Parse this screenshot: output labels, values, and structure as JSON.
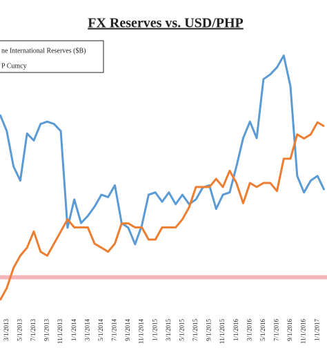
{
  "chart_data": {
    "type": "line",
    "title": "FX Reserves vs. USD/PHP",
    "categories": [
      null,
      "3/1/2013",
      null,
      "5/1/2013",
      null,
      "7/1/2013",
      null,
      "9/1/2013",
      null,
      "11/1/2013",
      null,
      "1/1/2014",
      null,
      "3/1/2014",
      null,
      "5/1/2014",
      null,
      "7/1/2014",
      null,
      "9/1/2014",
      null,
      "11/1/2014",
      null,
      "1/1/2015",
      null,
      "3/1/2015",
      null,
      "5/1/2015",
      null,
      "7/1/2015",
      null,
      "9/1/2015",
      null,
      "11/1/2015",
      null,
      "1/1/2016",
      null,
      "3/1/2016",
      null,
      "5/1/2016",
      null,
      "7/1/2016",
      null,
      "9/1/2016",
      null,
      "11/1/2016",
      null,
      "1/1/2017",
      null
    ],
    "series": [
      {
        "name": "ne International Reserves ($B)",
        "color": "#5b9bd5",
        "values": [
          83.9,
          83.2,
          81.7,
          81.1,
          83.1,
          82.8,
          83.5,
          83.6,
          83.5,
          83.2,
          79.1,
          80.3,
          79.3,
          79.6,
          80.0,
          80.5,
          80.4,
          80.9,
          79.3,
          79.1,
          78.4,
          79.2,
          80.5,
          80.6,
          80.2,
          80.6,
          80.1,
          80.5,
          80.1,
          80.3,
          80.8,
          80.9,
          79.9,
          80.5,
          80.6,
          81.7,
          82.9,
          83.6,
          82.9,
          85.4,
          85.6,
          85.9,
          86.4,
          85.1,
          81.3,
          80.6,
          81.1,
          81.3,
          80.7
        ]
      },
      {
        "name": "P Cumcy",
        "color": "#ed7d31",
        "axis": "y2",
        "values": [
          44.6,
          44.9,
          45.4,
          45.7,
          45.9,
          46.3,
          45.8,
          45.7,
          46.0,
          46.3,
          46.6,
          46.4,
          46.4,
          46.4,
          46.0,
          45.9,
          45.8,
          46.0,
          46.5,
          46.5,
          46.4,
          46.4,
          46.1,
          46.1,
          46.4,
          46.4,
          46.4,
          46.6,
          46.9,
          47.4,
          47.4,
          47.4,
          47.6,
          47.4,
          47.8,
          47.5,
          47.0,
          47.5,
          47.4,
          47.5,
          47.5,
          47.3,
          48.1,
          48.1,
          48.7,
          48.6,
          48.7,
          49.0,
          48.9
        ]
      }
    ],
    "ylim": [
      75,
      87
    ],
    "y2lim": [
      44,
      51
    ],
    "reference_line": {
      "value": 77,
      "color": "#f4b6b6"
    }
  }
}
